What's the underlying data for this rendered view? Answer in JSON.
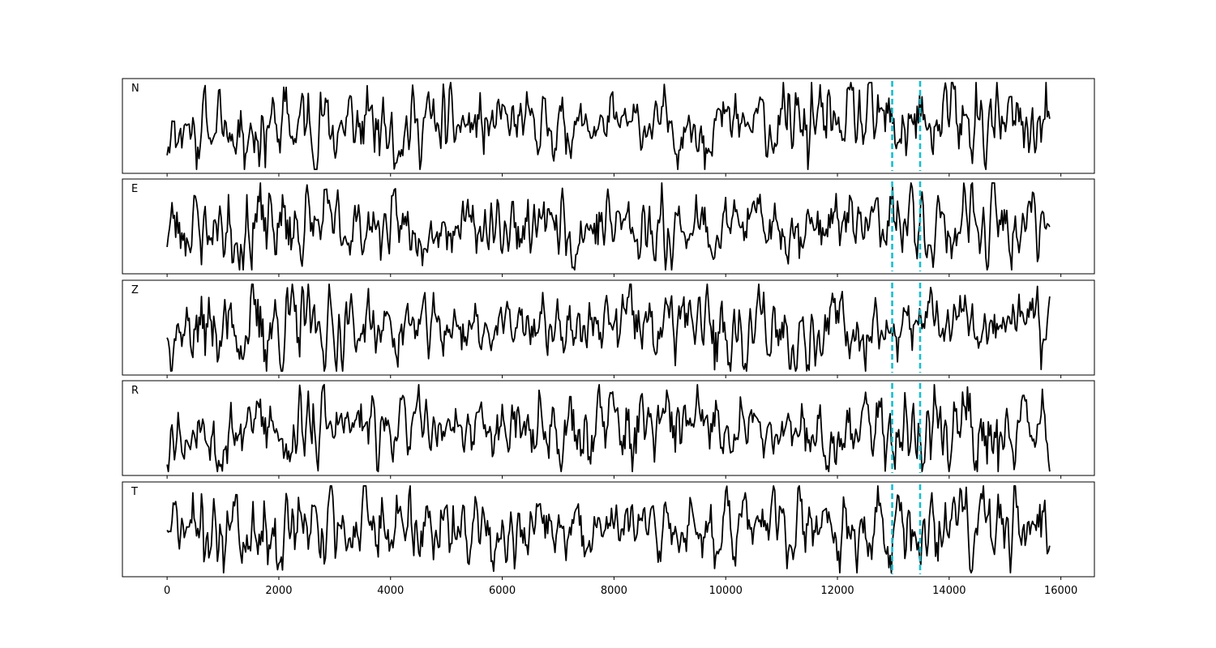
{
  "chart_data": {
    "type": "line",
    "shared_x_axis": {
      "ticks": [
        0,
        2000,
        4000,
        6000,
        8000,
        10000,
        12000,
        14000,
        16000
      ],
      "tick_labels": [
        "0",
        "2000",
        "4000",
        "6000",
        "8000",
        "10000",
        "12000",
        "14000",
        "16000"
      ],
      "xlim": [
        -800,
        16600
      ]
    },
    "samples": 15801,
    "markers": {
      "color": "#17becf",
      "style": "dashed",
      "x": [
        12980,
        13480
      ]
    },
    "panels": [
      {
        "label": "N",
        "seed": 11,
        "ylim": [
          -1.2,
          1.2
        ]
      },
      {
        "label": "E",
        "seed": 23,
        "ylim": [
          -1.2,
          1.2
        ]
      },
      {
        "label": "Z",
        "seed": 37,
        "ylim": [
          -1.2,
          1.2
        ]
      },
      {
        "label": "R",
        "seed": 53,
        "ylim": [
          -1.2,
          1.2
        ]
      },
      {
        "label": "T",
        "seed": 71,
        "ylim": [
          -1.2,
          1.2
        ]
      }
    ],
    "trace_color": "#000000",
    "grid": false,
    "legend": "none"
  }
}
